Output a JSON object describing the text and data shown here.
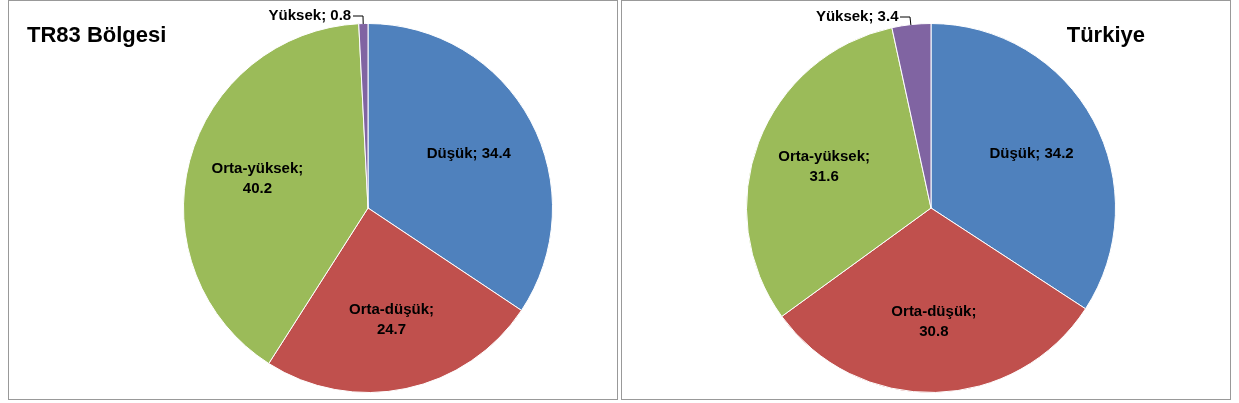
{
  "chart_data": [
    {
      "type": "pie",
      "title": "TR83 Bölgesi",
      "categories": [
        "Düşük",
        "Orta-düşük",
        "Orta-yüksek",
        "Yüksek"
      ],
      "values": [
        34.4,
        24.7,
        40.2,
        0.8
      ],
      "colors": [
        "#4f81bd",
        "#c0504d",
        "#9bbb59",
        "#8064a2"
      ],
      "value_labels": [
        "; 34.4",
        "; 24.7",
        "; 40.2",
        "; 0.8"
      ]
    },
    {
      "type": "pie",
      "title": "Türkiye",
      "categories": [
        "Düşük",
        "Orta-düşük",
        "Orta-yüksek",
        "Yüksek"
      ],
      "values": [
        34.2,
        30.8,
        31.6,
        3.4
      ],
      "colors": [
        "#4f81bd",
        "#c0504d",
        "#9bbb59",
        "#8064a2"
      ],
      "value_labels": [
        "; 34.2",
        "; 30.8",
        "; 31.6",
        "; 3.4"
      ]
    }
  ]
}
